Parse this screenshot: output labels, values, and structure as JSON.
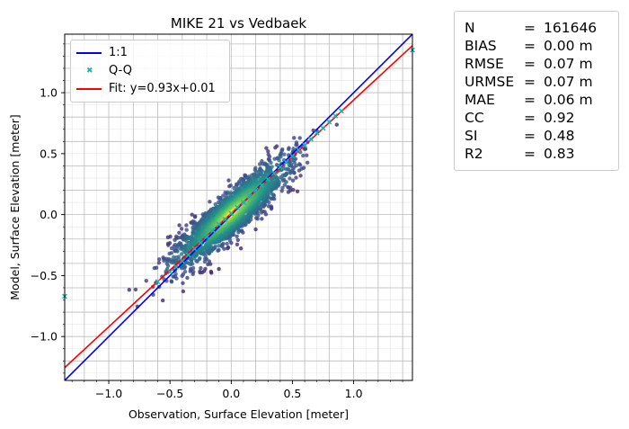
{
  "chart_data": {
    "type": "scatter",
    "title": "MIKE 21 vs Vedbaek",
    "xlabel": "Observation, Surface Elevation [meter]",
    "ylabel": "Model, Surface Elevation [meter]",
    "xlim": [
      -1.36,
      1.48
    ],
    "ylim": [
      -1.36,
      1.48
    ],
    "xticks": [
      -1.0,
      -0.5,
      0.0,
      0.5,
      1.0
    ],
    "yticks": [
      -1.0,
      -0.5,
      0.0,
      0.5,
      1.0
    ],
    "xtick_labels": [
      "−1.0",
      "−0.5",
      "0.0",
      "0.5",
      "1.0"
    ],
    "ytick_labels": [
      "−1.0",
      "−0.5",
      "0.0",
      "0.5",
      "1.0"
    ],
    "grid": true,
    "legend_position": "top-left",
    "colormap": "viridis",
    "series": [
      {
        "name": "1:1",
        "type": "line",
        "color": "#0000ff",
        "slope": 1.0,
        "intercept": 0.0
      },
      {
        "name": "Q-Q",
        "type": "marker",
        "color": "#20b2aa",
        "marker": "x",
        "x": [
          -1.36,
          -0.6,
          -0.5,
          -0.45,
          -0.4,
          -0.35,
          -0.3,
          -0.25,
          -0.2,
          -0.15,
          -0.1,
          -0.05,
          0.0,
          0.05,
          0.1,
          0.15,
          0.2,
          0.25,
          0.3,
          0.35,
          0.4,
          0.45,
          0.5,
          0.55,
          0.6,
          0.65,
          0.7,
          0.75,
          0.8,
          0.85,
          0.9,
          1.48
        ],
        "y": [
          -0.67,
          -0.55,
          -0.47,
          -0.43,
          -0.38,
          -0.33,
          -0.28,
          -0.23,
          -0.18,
          -0.13,
          -0.08,
          -0.04,
          0.01,
          0.06,
          0.1,
          0.15,
          0.2,
          0.24,
          0.29,
          0.34,
          0.39,
          0.43,
          0.48,
          0.53,
          0.57,
          0.62,
          0.67,
          0.71,
          0.76,
          0.81,
          0.85,
          1.35
        ]
      },
      {
        "name": "Fit: y=0.93x+0.01",
        "type": "line",
        "color": "#ff0000",
        "slope": 0.93,
        "intercept": 0.01
      }
    ],
    "density": {
      "n": 161646,
      "center": [
        0.0,
        0.0
      ],
      "x_extent": [
        -0.65,
        1.1
      ],
      "y_extent": [
        -0.65,
        1.05
      ]
    }
  },
  "stats": [
    {
      "name": "N",
      "value": "161646"
    },
    {
      "name": "BIAS",
      "value": "0.00 m"
    },
    {
      "name": "RMSE",
      "value": "0.07 m"
    },
    {
      "name": "URMSE",
      "value": "0.07 m"
    },
    {
      "name": "MAE",
      "value": "0.06 m"
    },
    {
      "name": "CC",
      "value": "0.92"
    },
    {
      "name": "SI",
      "value": "0.48"
    },
    {
      "name": "R2",
      "value": "0.83"
    }
  ],
  "stat_equals": "="
}
